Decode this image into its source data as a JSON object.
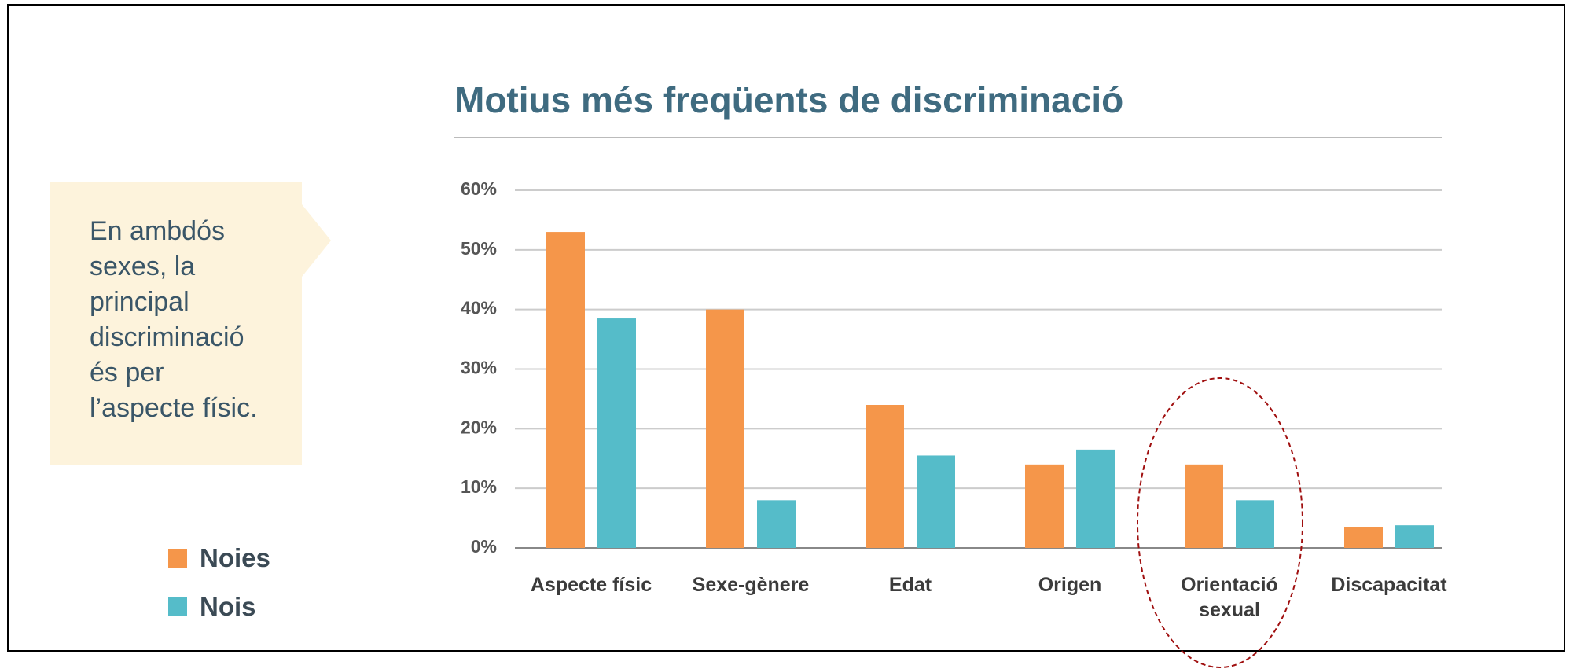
{
  "chart_data": {
    "type": "bar",
    "title": "Motius més freqüents de discriminació",
    "categories": [
      "Aspecte físic",
      "Sexe-gènere",
      "Edat",
      "Origen",
      "Orientació sexual",
      "Discapacitat"
    ],
    "series": [
      {
        "name": "Noies",
        "color": "#f5964a",
        "values": [
          53,
          40,
          24,
          14,
          14,
          3.5
        ]
      },
      {
        "name": "Nois",
        "color": "#55bcc9",
        "values": [
          38.5,
          8,
          15.5,
          16.5,
          8,
          3.8
        ]
      }
    ],
    "ylim": [
      0,
      60
    ],
    "yticks": [
      {
        "value": 0,
        "label": "0%"
      },
      {
        "value": 10,
        "label": "10%"
      },
      {
        "value": 20,
        "label": "20%"
      },
      {
        "value": 30,
        "label": "30%"
      },
      {
        "value": 40,
        "label": "40%"
      },
      {
        "value": 50,
        "label": "50%"
      },
      {
        "value": 60,
        "label": "60%"
      }
    ],
    "grid": true,
    "annotation": [
      "En ambdós",
      "sexes, la",
      "principal",
      "discriminació",
      "és per",
      "l’aspecte físic."
    ]
  }
}
